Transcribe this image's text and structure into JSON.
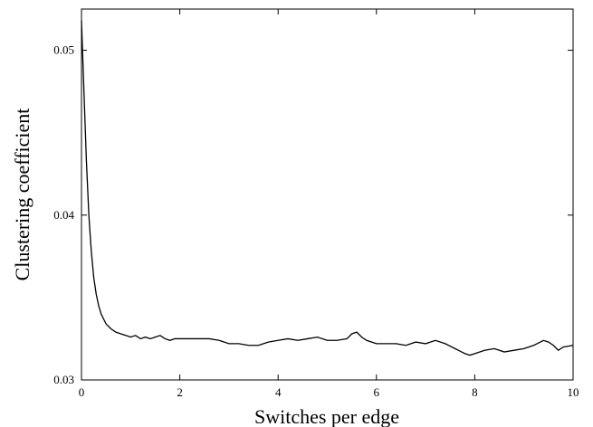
{
  "chart_data": {
    "type": "line",
    "title": "",
    "xlabel": "Switches per edge",
    "ylabel": "Clustering coefficient",
    "xlim": [
      0,
      10
    ],
    "ylim": [
      0.03,
      0.0525
    ],
    "xticks": [
      0,
      2,
      4,
      6,
      8,
      10
    ],
    "xtick_labels": [
      "0",
      "2",
      "4",
      "6",
      "8",
      "10"
    ],
    "yticks": [
      0.03,
      0.04,
      0.05
    ],
    "ytick_labels": [
      "0.03",
      "0.04",
      "0.05"
    ],
    "grid": false,
    "legend": "none",
    "series": [
      {
        "color": "#000000",
        "x": [
          0,
          0.05,
          0.1,
          0.15,
          0.2,
          0.25,
          0.3,
          0.35,
          0.4,
          0.5,
          0.6,
          0.7,
          0.8,
          0.9,
          1.0,
          1.1,
          1.2,
          1.3,
          1.4,
          1.5,
          1.6,
          1.7,
          1.8,
          1.9,
          2.0,
          2.2,
          2.4,
          2.6,
          2.8,
          3.0,
          3.2,
          3.4,
          3.6,
          3.8,
          4.0,
          4.2,
          4.4,
          4.6,
          4.8,
          5.0,
          5.2,
          5.4,
          5.5,
          5.6,
          5.7,
          5.8,
          6.0,
          6.2,
          6.4,
          6.6,
          6.8,
          7.0,
          7.2,
          7.4,
          7.6,
          7.8,
          7.9,
          8.0,
          8.2,
          8.4,
          8.6,
          8.8,
          9.0,
          9.2,
          9.4,
          9.5,
          9.6,
          9.7,
          9.8,
          10.0
        ],
        "y": [
          0.0518,
          0.0475,
          0.0433,
          0.04,
          0.0378,
          0.0362,
          0.0352,
          0.0345,
          0.034,
          0.0334,
          0.0331,
          0.0329,
          0.0328,
          0.0327,
          0.0326,
          0.0327,
          0.0325,
          0.0326,
          0.0325,
          0.0326,
          0.0327,
          0.0325,
          0.0324,
          0.0325,
          0.0325,
          0.0325,
          0.0325,
          0.0325,
          0.0324,
          0.0322,
          0.0322,
          0.0321,
          0.0321,
          0.0323,
          0.0324,
          0.0325,
          0.0324,
          0.0325,
          0.0326,
          0.0324,
          0.0324,
          0.0325,
          0.0328,
          0.0329,
          0.0326,
          0.0324,
          0.0322,
          0.0322,
          0.0322,
          0.0321,
          0.0323,
          0.0322,
          0.0324,
          0.0322,
          0.0319,
          0.0316,
          0.0315,
          0.0316,
          0.0318,
          0.0319,
          0.0317,
          0.0318,
          0.0319,
          0.0321,
          0.0324,
          0.0323,
          0.0321,
          0.0318,
          0.032,
          0.0321
        ]
      }
    ]
  }
}
